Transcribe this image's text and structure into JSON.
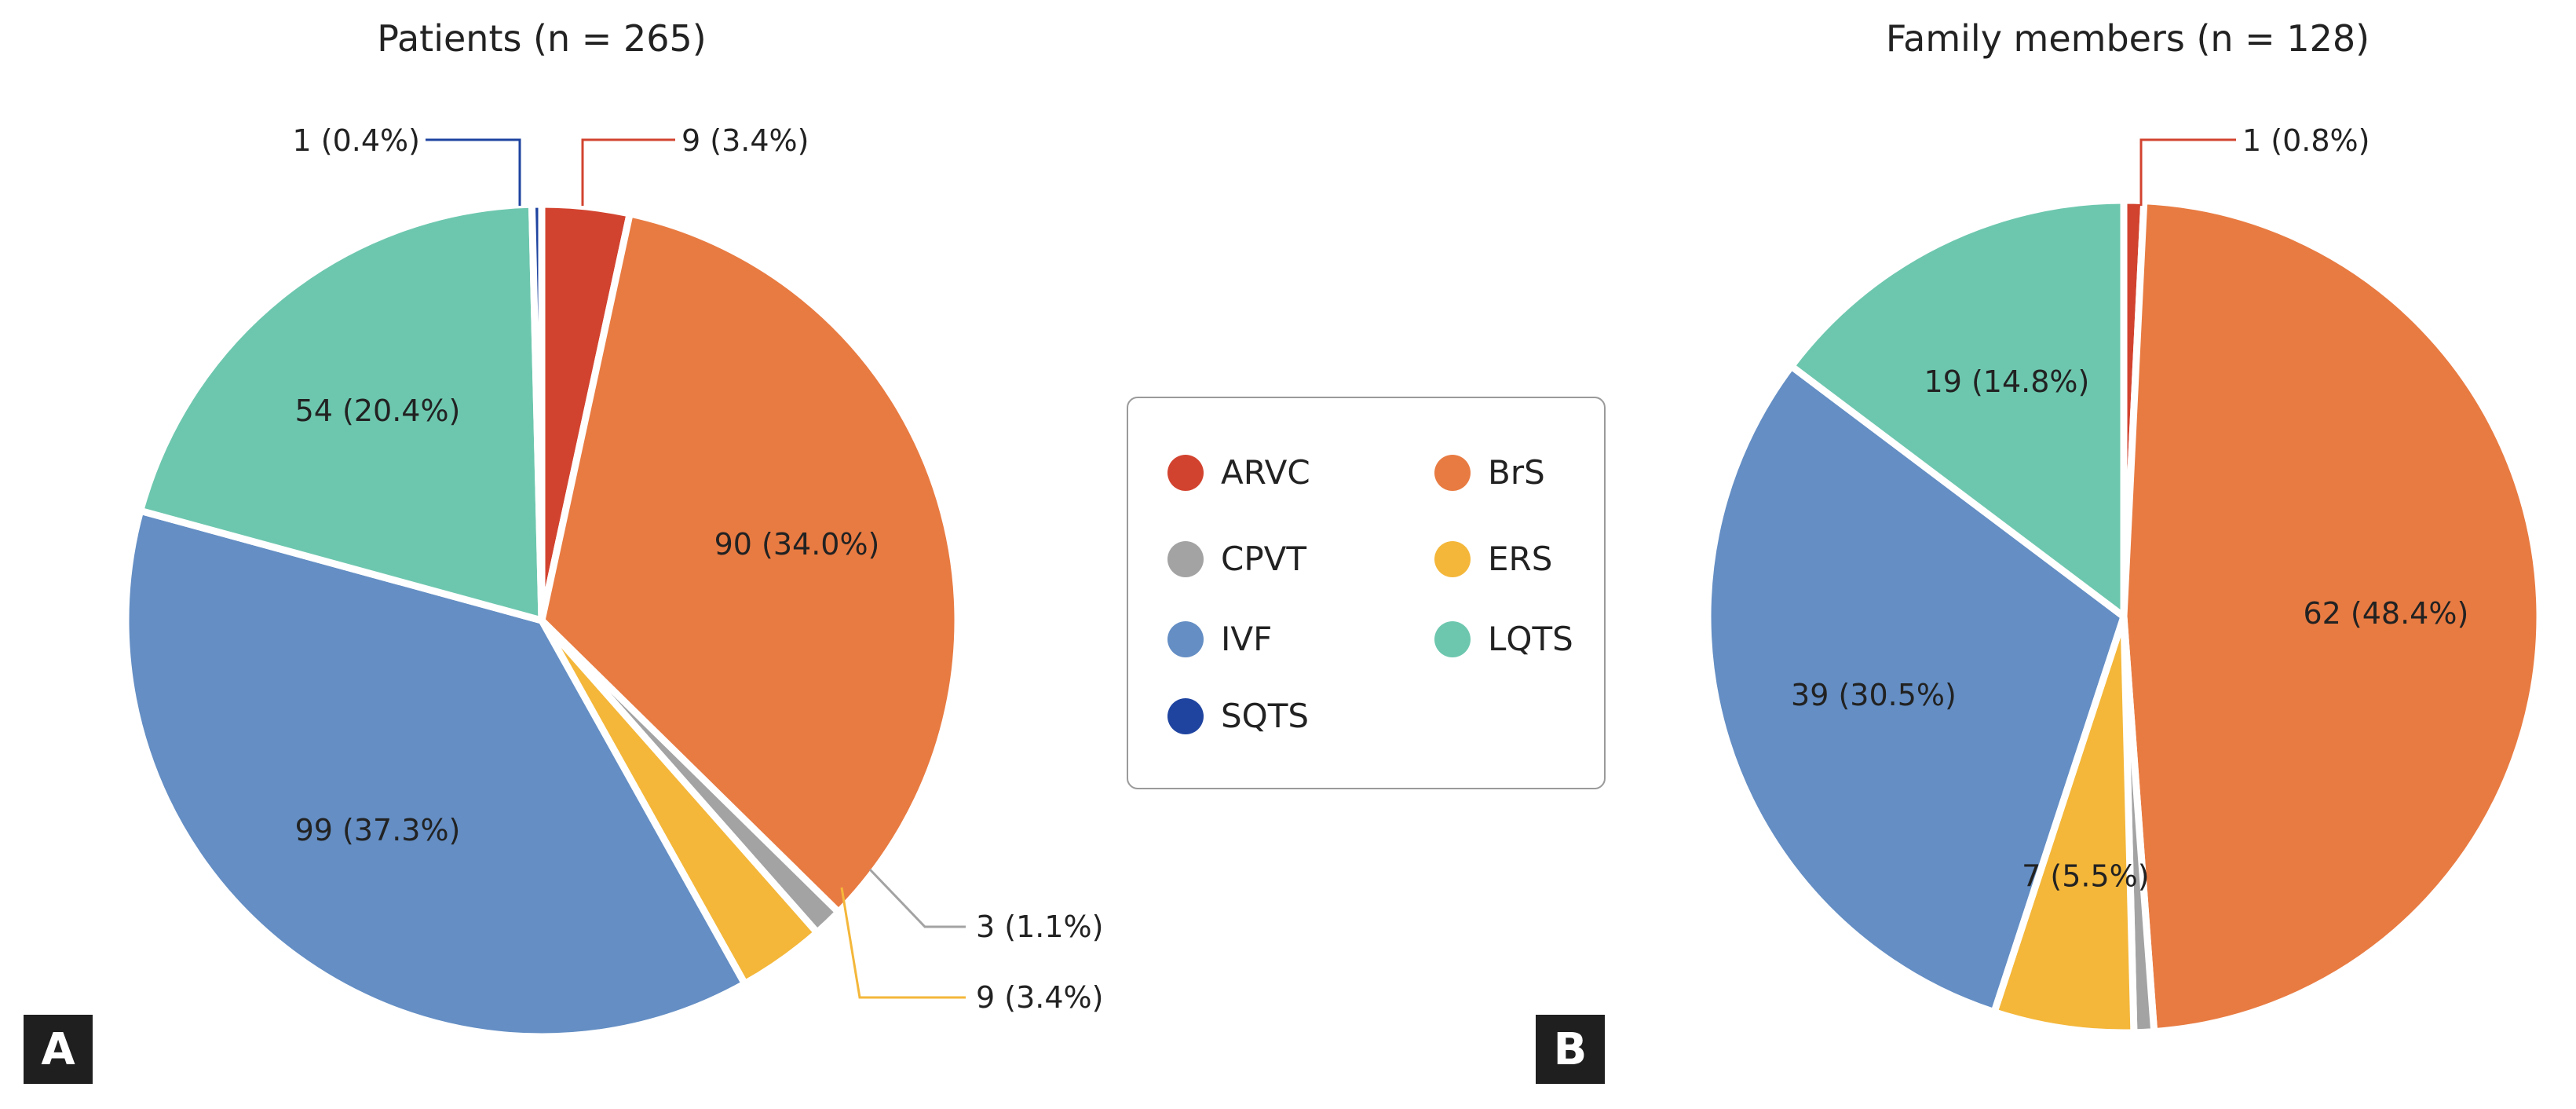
{
  "colors": {
    "ARVC": "#d2432f",
    "BrS": "#e87b42",
    "CPVT": "#a3a3a3",
    "ERS": "#f4b73a",
    "IVF": "#648ec4",
    "LQTS": "#6dc7ae",
    "SQTS": "#1f44a0"
  },
  "chart_data": [
    {
      "type": "pie",
      "panel": "A",
      "title": "Patients (n = 265)",
      "slices": [
        {
          "category": "ARVC",
          "value": 9,
          "label": "9 (3.4%)",
          "callout": true
        },
        {
          "category": "BrS",
          "value": 90,
          "label": "90 (34.0%)",
          "callout": false
        },
        {
          "category": "CPVT",
          "value": 3,
          "label": "3 (1.1%)",
          "callout": true
        },
        {
          "category": "ERS",
          "value": 9,
          "label": "9 (3.4%)",
          "callout": true
        },
        {
          "category": "IVF",
          "value": 99,
          "label": "99 (37.3%)",
          "callout": false
        },
        {
          "category": "LQTS",
          "value": 54,
          "label": "54 (20.4%)",
          "callout": false
        },
        {
          "category": "SQTS",
          "value": 1,
          "label": "1 (0.4%)",
          "callout": true
        }
      ]
    },
    {
      "type": "pie",
      "panel": "B",
      "title": "Family members (n = 128)",
      "slices": [
        {
          "category": "ARVC",
          "value": 1,
          "label": "1 (0.8%)",
          "callout": true
        },
        {
          "category": "BrS",
          "value": 62,
          "label": "62 (48.4%)",
          "callout": false
        },
        {
          "category": "CPVT",
          "value": 1,
          "label": "",
          "callout": false
        },
        {
          "category": "ERS",
          "value": 7,
          "label": "7 (5.5%)",
          "callout": false
        },
        {
          "category": "IVF",
          "value": 39,
          "label": "39 (30.5%)",
          "callout": false
        },
        {
          "category": "LQTS",
          "value": 19,
          "label": "19 (14.8%)",
          "callout": false
        }
      ]
    }
  ],
  "legend": {
    "items": [
      "ARVC",
      "BrS",
      "CPVT",
      "ERS",
      "IVF",
      "LQTS",
      "SQTS"
    ]
  }
}
